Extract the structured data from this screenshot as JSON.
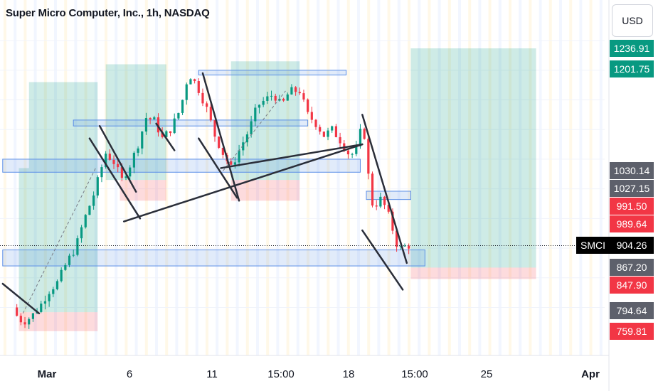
{
  "title": "Super Micro Computer, Inc., 1h, NASDAQ",
  "currency_button": "USD",
  "symbol_label": "SMCI",
  "colors": {
    "up": "#089981",
    "down": "#f23645",
    "box_green": "#089981",
    "box_red": "#f23645",
    "zone_blue": "#5b8ee6",
    "trendline": "#2a2e39",
    "price_tag_gray": "#5d606b",
    "price_tag_green": "#089981",
    "price_tag_red": "#f23645",
    "price_tag_black": "#000000"
  },
  "price_tags": [
    {
      "label": "1236.91",
      "color": "green"
    },
    {
      "label": "1201.75",
      "color": "green"
    },
    {
      "label": "1030.14",
      "color": "gray"
    },
    {
      "label": "1027.15",
      "color": "gray"
    },
    {
      "label": "991.50",
      "color": "red"
    },
    {
      "label": "989.64",
      "color": "red"
    },
    {
      "label": "904.26",
      "color": "black"
    },
    {
      "label": "867.20",
      "color": "gray"
    },
    {
      "label": "847.90",
      "color": "red"
    },
    {
      "label": "794.64",
      "color": "gray"
    },
    {
      "label": "759.81",
      "color": "red"
    }
  ],
  "chart_data": {
    "type": "candlestick",
    "symbol": "SMCI",
    "interval": "1h",
    "exchange": "NASDAQ",
    "x_tick_labels": [
      {
        "label": "Mar",
        "bold": true
      },
      {
        "label": "6",
        "bold": false
      },
      {
        "label": "11",
        "bold": false
      },
      {
        "label": "15:00",
        "bold": false
      },
      {
        "label": "18",
        "bold": false
      },
      {
        "label": "15:00",
        "bold": false
      },
      {
        "label": "25",
        "bold": false
      },
      {
        "label": "Apr",
        "bold": true
      }
    ],
    "last_price": 904.26,
    "close_path": [
      [
        0,
        800
      ],
      [
        0.2,
        786
      ],
      [
        0.5,
        775
      ],
      [
        0.9,
        784
      ],
      [
        1.3,
        800
      ],
      [
        1.8,
        828
      ],
      [
        2.2,
        842
      ],
      [
        2.7,
        878
      ],
      [
        3.1,
        900
      ],
      [
        3.5,
        945
      ],
      [
        4.0,
        990
      ],
      [
        4.3,
        1025
      ],
      [
        4.6,
        1060
      ],
      [
        5.0,
        1045
      ],
      [
        5.4,
        1015
      ],
      [
        5.8,
        1040
      ],
      [
        6.2,
        1075
      ],
      [
        6.6,
        1120
      ],
      [
        7.0,
        1115
      ],
      [
        7.4,
        1085
      ],
      [
        7.8,
        1100
      ],
      [
        8.3,
        1135
      ],
      [
        8.7,
        1195
      ],
      [
        9.1,
        1175
      ],
      [
        9.6,
        1135
      ],
      [
        10.0,
        1090
      ],
      [
        10.4,
        1060
      ],
      [
        10.8,
        1035
      ],
      [
        11.2,
        1065
      ],
      [
        11.7,
        1100
      ],
      [
        12.1,
        1140
      ],
      [
        12.5,
        1150
      ],
      [
        12.9,
        1160
      ],
      [
        13.3,
        1140
      ],
      [
        13.7,
        1165
      ],
      [
        14.2,
        1165
      ],
      [
        14.6,
        1125
      ],
      [
        15.0,
        1110
      ],
      [
        15.4,
        1090
      ],
      [
        15.8,
        1100
      ],
      [
        16.2,
        1082
      ],
      [
        16.7,
        1055
      ],
      [
        17.1,
        1070
      ],
      [
        17.3,
        1120
      ],
      [
        17.5,
        1060
      ],
      [
        17.7,
        985
      ],
      [
        17.9,
        965
      ],
      [
        18.1,
        985
      ],
      [
        18.3,
        980
      ],
      [
        18.6,
        955
      ],
      [
        18.9,
        920
      ],
      [
        19.1,
        895
      ],
      [
        19.3,
        905
      ],
      [
        19.5,
        900
      ],
      [
        19.6,
        904.26
      ]
    ],
    "annotation_boxes": [
      {
        "kind": "long_profit",
        "x1": 0.3,
        "x2": 4.2,
        "y1": 1035,
        "y2": 792
      },
      {
        "kind": "long_stop",
        "x1": 0.3,
        "x2": 4.2,
        "y1": 792,
        "y2": 760
      },
      {
        "kind": "long_profit",
        "x1": 0.8,
        "x2": 4.2,
        "y1": 1180,
        "y2": 1035
      },
      {
        "kind": "long_profit",
        "x1": 4.6,
        "x2": 7.6,
        "y1": 1210,
        "y2": 1015
      },
      {
        "kind": "long_stop",
        "x1": 5.3,
        "x2": 7.6,
        "y1": 1015,
        "y2": 980
      },
      {
        "kind": "long_profit",
        "x1": 10.8,
        "x2": 14.2,
        "y1": 1215,
        "y2": 1015
      },
      {
        "kind": "long_stop",
        "x1": 10.8,
        "x2": 14.2,
        "y1": 1015,
        "y2": 980
      },
      {
        "kind": "long_profit",
        "x1": 19.7,
        "x2": 25.9,
        "y1": 1236.91,
        "y2": 867.2
      },
      {
        "kind": "long_stop",
        "x1": 19.7,
        "x2": 25.9,
        "y1": 867.2,
        "y2": 847.9
      }
    ],
    "zones": [
      {
        "x1": 3.0,
        "x2": 14.6,
        "y1": 1116,
        "y2": 1106
      },
      {
        "x1": -0.5,
        "x2": 17.2,
        "y1": 1050,
        "y2": 1028
      },
      {
        "x1": 9.2,
        "x2": 16.5,
        "y1": 1200,
        "y2": 1192
      },
      {
        "x1": 17.5,
        "x2": 19.7,
        "y1": 996,
        "y2": 982
      },
      {
        "x1": -0.5,
        "x2": 20.4,
        "y1": 897,
        "y2": 870
      }
    ],
    "trendlines": [
      [
        4.3,
        1106,
        6.1,
        995
      ],
      [
        3.8,
        1085,
        6.3,
        950
      ],
      [
        5.5,
        945,
        17.3,
        1075
      ],
      [
        10.3,
        1035,
        17.3,
        1075
      ],
      [
        9.4,
        1195,
        11.2,
        980
      ],
      [
        9.2,
        1085,
        11.1,
        985
      ],
      [
        7.1,
        1110,
        8.0,
        1065
      ],
      [
        17.3,
        1125,
        19.5,
        875
      ],
      [
        17.3,
        930,
        19.3,
        830
      ],
      [
        -0.5,
        840,
        1.3,
        790
      ]
    ]
  }
}
